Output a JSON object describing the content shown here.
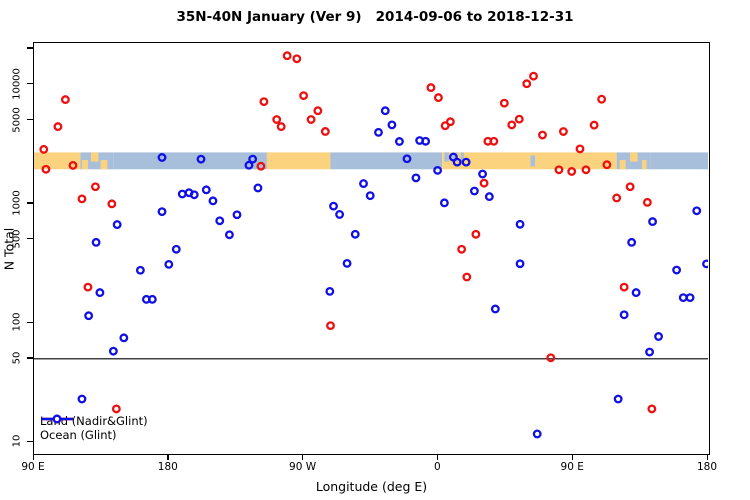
{
  "title": "35N-40N January (Ver 9)   2014-09-06 to 2018-12-31",
  "chart_data": {
    "type": "scatter",
    "title": "35N-40N January (Ver 9)   2014-09-06 to 2018-12-31",
    "xlabel": "Longitude (deg E)",
    "ylabel": "N Total",
    "x_axis": {
      "range_deg_along_axis": [
        90,
        540
      ],
      "ticks": [
        {
          "pos": 90,
          "label": "90 E"
        },
        {
          "pos": 180,
          "label": "180"
        },
        {
          "pos": 270,
          "label": "90 W"
        },
        {
          "pos": 360,
          "label": "0"
        },
        {
          "pos": 450,
          "label": "90 E"
        },
        {
          "pos": 540,
          "label": "180"
        }
      ]
    },
    "y_axis": {
      "scale": "log10",
      "range": [
        8.1,
        22387
      ],
      "labeled_ticks": [
        10000,
        5000,
        1000,
        500,
        100,
        50,
        10
      ],
      "unlabeled_ticks": [
        20000
      ]
    },
    "reference_line_y": 50,
    "grid": false,
    "legend_position": "bottom-left-inside",
    "colors": {
      "land_series": "#EE0F0F",
      "ocean_series": "#1010E6",
      "band_land": "#FBD37F",
      "band_ocean": "#A8BFDB"
    },
    "land_ocean_band": {
      "n_range": [
        1950,
        2700
      ],
      "base_segments": [
        {
          "from": 90,
          "to": 121,
          "type": "land"
        },
        {
          "from": 121,
          "to": 143,
          "type": "ocean"
        },
        {
          "from": 143,
          "to": 245.5,
          "type": "ocean"
        },
        {
          "from": 245.5,
          "to": 288,
          "type": "land"
        },
        {
          "from": 288,
          "to": 362.5,
          "type": "ocean"
        },
        {
          "from": 362.5,
          "to": 479,
          "type": "land"
        },
        {
          "from": 479,
          "to": 501.5,
          "type": "ocean"
        },
        {
          "from": 501.5,
          "to": 540,
          "type": "ocean"
        }
      ],
      "patches": [
        {
          "from": 122,
          "to": 126,
          "type": "land",
          "v": "bottom"
        },
        {
          "from": 128,
          "to": 133,
          "type": "land",
          "v": "top"
        },
        {
          "from": 134.5,
          "to": 139,
          "type": "land",
          "v": "bottom"
        },
        {
          "from": 364,
          "to": 367,
          "type": "ocean",
          "v": "top"
        },
        {
          "from": 369,
          "to": 373,
          "type": "ocean",
          "v": "top"
        },
        {
          "from": 375,
          "to": 377,
          "type": "ocean",
          "v": "top"
        },
        {
          "from": 421.5,
          "to": 424.5,
          "type": "ocean",
          "v": "mid"
        },
        {
          "from": 481,
          "to": 485,
          "type": "land",
          "v": "bottom"
        },
        {
          "from": 488,
          "to": 493,
          "type": "land",
          "v": "top"
        },
        {
          "from": 496,
          "to": 499,
          "type": "land",
          "v": "bottom"
        }
      ]
    },
    "series": [
      {
        "name": "Land (Nadir&Glint)",
        "color": "#EE0F0F",
        "marker": "open-circle",
        "points": [
          [
            111,
            7500
          ],
          [
            106,
            4450
          ],
          [
            96.5,
            2870
          ],
          [
            98,
            1950
          ],
          [
            116,
            2100
          ],
          [
            131,
            1390
          ],
          [
            122,
            1100
          ],
          [
            142,
            1000
          ],
          [
            126,
            200
          ],
          [
            145,
            19
          ],
          [
            243.5,
            7200
          ],
          [
            259,
            17500
          ],
          [
            265.5,
            16500
          ],
          [
            270,
            8100
          ],
          [
            252,
            5100
          ],
          [
            255,
            4450
          ],
          [
            275,
            5100
          ],
          [
            279.5,
            6050
          ],
          [
            284.5,
            4050
          ],
          [
            241.5,
            2070
          ],
          [
            288,
            95
          ],
          [
            355,
            9450
          ],
          [
            360,
            7800
          ],
          [
            364.5,
            4530
          ],
          [
            368,
            4890
          ],
          [
            393,
            3350
          ],
          [
            397,
            3350
          ],
          [
            390.5,
            1490
          ],
          [
            375.5,
            415
          ],
          [
            379,
            243
          ],
          [
            385,
            555
          ],
          [
            423.5,
            11800
          ],
          [
            419,
            10200
          ],
          [
            404,
            7000
          ],
          [
            414,
            5140
          ],
          [
            409,
            4600
          ],
          [
            429.5,
            3780
          ],
          [
            443.5,
            4040
          ],
          [
            469,
            7550
          ],
          [
            464,
            4580
          ],
          [
            454.5,
            2890
          ],
          [
            440.5,
            1930
          ],
          [
            449,
            1870
          ],
          [
            458.5,
            1930
          ],
          [
            472.5,
            2130
          ],
          [
            488,
            1390
          ],
          [
            479,
            1120
          ],
          [
            499.5,
            1030
          ],
          [
            484,
            200
          ],
          [
            435,
            51
          ],
          [
            502.5,
            19
          ]
        ]
      },
      {
        "name": "Ocean (Glint)",
        "color": "#1010E6",
        "marker": "open-circle",
        "points": [
          [
            201.5,
            2370
          ],
          [
            233.5,
            2110
          ],
          [
            236,
            2370
          ],
          [
            239.5,
            1360
          ],
          [
            175.5,
            2450
          ],
          [
            145.5,
            670
          ],
          [
            131.5,
            475
          ],
          [
            175.5,
            860
          ],
          [
            185,
            415
          ],
          [
            189,
            1210
          ],
          [
            193.5,
            1240
          ],
          [
            197,
            1190
          ],
          [
            205,
            1310
          ],
          [
            209.5,
            1060
          ],
          [
            214,
            720
          ],
          [
            225.5,
            810
          ],
          [
            220.5,
            550
          ],
          [
            161,
            277
          ],
          [
            180,
            310
          ],
          [
            134,
            180
          ],
          [
            165,
            158
          ],
          [
            169,
            158
          ],
          [
            126.5,
            115
          ],
          [
            150,
            75
          ],
          [
            143,
            58
          ],
          [
            122,
            23
          ],
          [
            324.5,
            6050
          ],
          [
            329,
            4600
          ],
          [
            320,
            3980
          ],
          [
            334,
            3340
          ],
          [
            347.5,
            3400
          ],
          [
            351.5,
            3350
          ],
          [
            339,
            2390
          ],
          [
            359.5,
            1910
          ],
          [
            370,
            2470
          ],
          [
            372.5,
            2240
          ],
          [
            378.5,
            2240
          ],
          [
            389.5,
            1780
          ],
          [
            384,
            1280
          ],
          [
            394,
            1150
          ],
          [
            345,
            1650
          ],
          [
            310,
            1480
          ],
          [
            314.5,
            1170
          ],
          [
            290,
            957
          ],
          [
            294,
            815
          ],
          [
            304.5,
            555
          ],
          [
            364,
            1020
          ],
          [
            299,
            316
          ],
          [
            287.5,
            184
          ],
          [
            414.5,
            673
          ],
          [
            503,
            710
          ],
          [
            532.5,
            875
          ],
          [
            489,
            475
          ],
          [
            480,
            23
          ],
          [
            426,
            11.7
          ],
          [
            414.5,
            314
          ],
          [
            398,
            131
          ],
          [
            492,
            180
          ],
          [
            484,
            117
          ],
          [
            519,
            278
          ],
          [
            539,
            313
          ],
          [
            523.5,
            163
          ],
          [
            528,
            163
          ],
          [
            507,
            77
          ],
          [
            501,
            57
          ]
        ]
      }
    ]
  },
  "legend": {
    "items": [
      {
        "label": "Land (Nadir&Glint)",
        "color": "#EE0F0F"
      },
      {
        "label": "Ocean (Glint)",
        "color": "#1010E6"
      }
    ]
  }
}
